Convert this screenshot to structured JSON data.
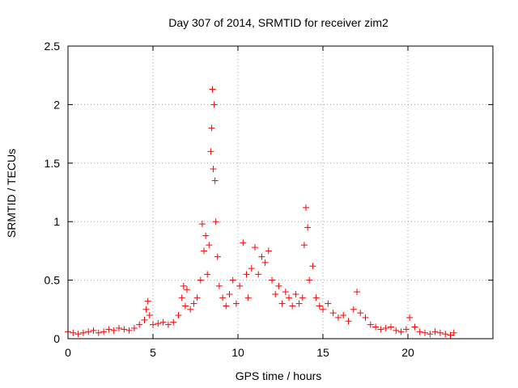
{
  "chart_data": {
    "type": "scatter",
    "title": "Day 307 of 2014, SRMTID for receiver zim2",
    "xlabel": "GPS time / hours",
    "ylabel": "SRMTID / TECUs",
    "xlim": [
      0,
      25
    ],
    "ylim": [
      0,
      2.5
    ],
    "xticks": [
      0,
      5,
      10,
      15,
      20
    ],
    "xtick_labels": [
      "0",
      "5",
      "10",
      "15",
      "20"
    ],
    "yticks": [
      0,
      0.5,
      1,
      1.5,
      2,
      2.5
    ],
    "ytick_labels": [
      "0",
      "0.5",
      "1",
      "1.5",
      "2",
      "2.5"
    ],
    "grid": true,
    "marker": "+",
    "series": [
      {
        "name": "SRMTID",
        "color": "#ff0000",
        "x": [
          0.0,
          0.3,
          0.6,
          0.9,
          1.2,
          1.5,
          1.8,
          2.1,
          2.4,
          2.7,
          3.0,
          3.3,
          3.6,
          3.9,
          4.2,
          4.5,
          4.6,
          4.7,
          4.8,
          5.0,
          5.3,
          5.6,
          5.9,
          6.2,
          6.5,
          6.7,
          6.8,
          6.9,
          7.0,
          7.2,
          7.4,
          7.6,
          7.8,
          7.9,
          8.0,
          8.1,
          8.2,
          8.3,
          8.4,
          8.45,
          8.5,
          8.55,
          8.6,
          8.65,
          8.7,
          8.8,
          8.9,
          9.1,
          9.3,
          9.5,
          9.7,
          9.9,
          10.1,
          10.3,
          10.5,
          10.6,
          10.8,
          11.0,
          11.2,
          11.4,
          11.6,
          11.8,
          12.0,
          12.2,
          12.4,
          12.6,
          12.8,
          13.0,
          13.2,
          13.4,
          13.6,
          13.8,
          13.9,
          14.0,
          14.1,
          14.2,
          14.4,
          14.6,
          14.8,
          15.0,
          15.3,
          15.6,
          15.9,
          16.2,
          16.5,
          16.8,
          17.0,
          17.2,
          17.5,
          17.8,
          18.1,
          18.4,
          18.7,
          19.0,
          19.3,
          19.6,
          19.9,
          20.1,
          20.4,
          20.7,
          21.0,
          21.3,
          21.6,
          21.9,
          22.2,
          22.5,
          22.7
        ],
        "y": [
          0.06,
          0.05,
          0.04,
          0.05,
          0.06,
          0.07,
          0.05,
          0.06,
          0.08,
          0.07,
          0.09,
          0.08,
          0.07,
          0.09,
          0.12,
          0.16,
          0.25,
          0.32,
          0.2,
          0.12,
          0.13,
          0.14,
          0.12,
          0.14,
          0.2,
          0.35,
          0.45,
          0.28,
          0.42,
          0.25,
          0.3,
          0.35,
          0.5,
          0.98,
          0.75,
          0.88,
          0.55,
          0.8,
          1.6,
          1.8,
          2.13,
          1.45,
          2.0,
          1.35,
          1.0,
          0.7,
          0.45,
          0.35,
          0.28,
          0.38,
          0.5,
          0.3,
          0.45,
          0.82,
          0.55,
          0.35,
          0.6,
          0.78,
          0.55,
          0.7,
          0.65,
          0.75,
          0.5,
          0.38,
          0.45,
          0.3,
          0.4,
          0.35,
          0.28,
          0.38,
          0.3,
          0.35,
          0.8,
          1.12,
          0.95,
          0.5,
          0.62,
          0.35,
          0.28,
          0.25,
          0.3,
          0.22,
          0.18,
          0.2,
          0.15,
          0.25,
          0.4,
          0.22,
          0.18,
          0.12,
          0.1,
          0.08,
          0.09,
          0.1,
          0.07,
          0.06,
          0.08,
          0.18,
          0.1,
          0.06,
          0.05,
          0.04,
          0.06,
          0.05,
          0.04,
          0.03,
          0.05
        ]
      }
    ]
  }
}
